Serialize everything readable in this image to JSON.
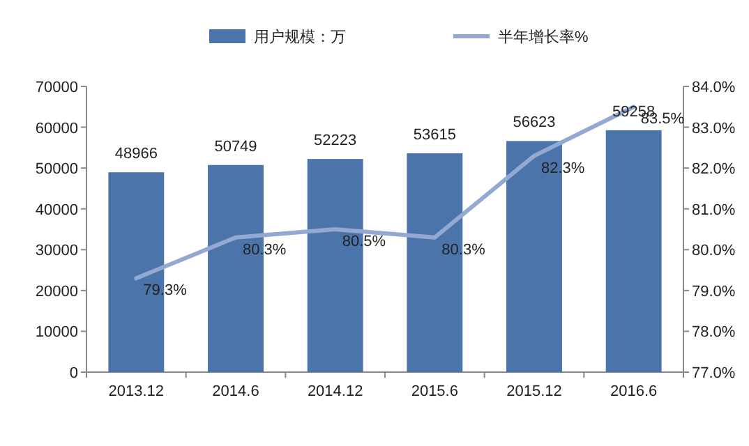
{
  "chart_data": {
    "type": "bar",
    "categories": [
      "2013.12",
      "2014.6",
      "2014.12",
      "2015.6",
      "2015.12",
      "2016.6"
    ],
    "series": [
      {
        "name": "用户规模：万",
        "color": "#4a74aa",
        "values": [
          48966,
          50749,
          52223,
          53615,
          56623,
          59258
        ],
        "value_labels": [
          "48966",
          "50749",
          "52223",
          "53615",
          "56623",
          "59258"
        ]
      },
      {
        "name": "半年增长率%",
        "type": "line",
        "axis": "y2",
        "color": "#94a9d2",
        "values": [
          79.3,
          80.3,
          80.5,
          80.3,
          82.3,
          83.5
        ],
        "value_labels": [
          "79.3%",
          "80.3%",
          "80.5%",
          "80.3%",
          "82.3%",
          "83.5%"
        ]
      }
    ],
    "ylim": [
      0,
      70000
    ],
    "yticks": [
      0,
      10000,
      20000,
      30000,
      40000,
      50000,
      60000,
      70000
    ],
    "y2lim": [
      77,
      84
    ],
    "y2ticks": [
      {
        "value": 77,
        "label": "77.0%"
      },
      {
        "value": 78,
        "label": "78.0%"
      },
      {
        "value": 79,
        "label": "79.0%"
      },
      {
        "value": 80,
        "label": "80.0%"
      },
      {
        "value": 81,
        "label": "81.0%"
      },
      {
        "value": 82,
        "label": "82.0%"
      },
      {
        "value": 83,
        "label": "83.0%"
      },
      {
        "value": 84,
        "label": "84.0%"
      }
    ],
    "legend": "top",
    "marker": "none",
    "line_style": "solid"
  }
}
